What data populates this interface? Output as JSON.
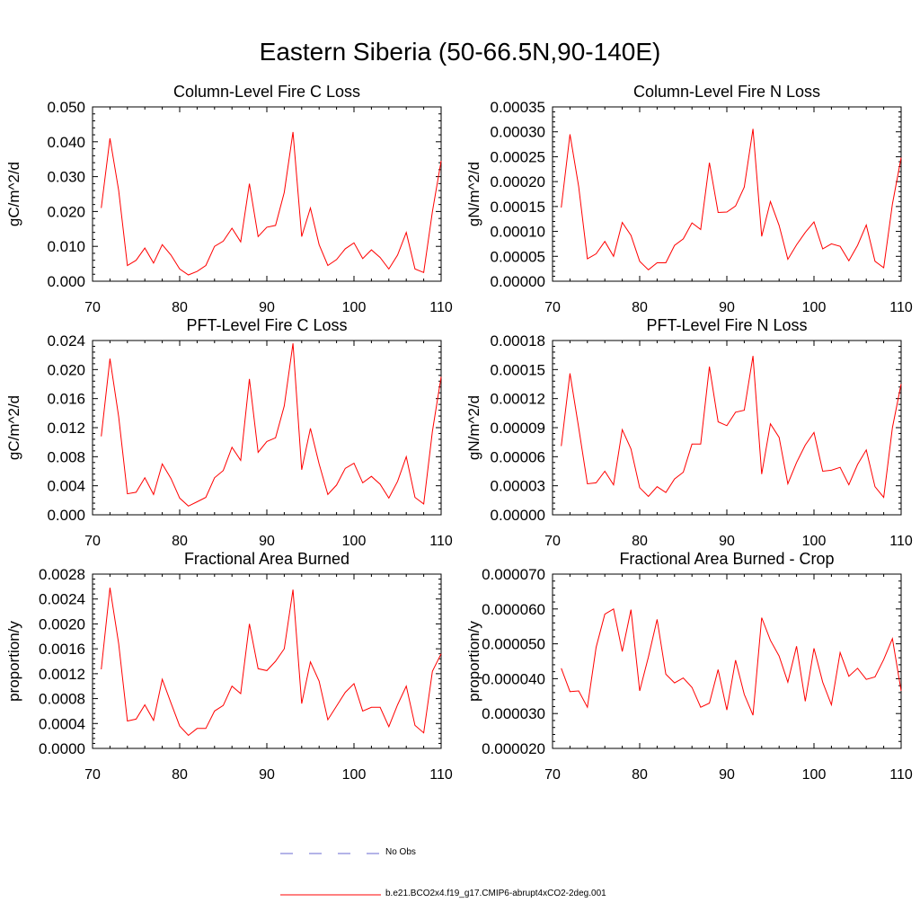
{
  "title": "Eastern Siberia (50-66.5N,90-140E)",
  "colors": {
    "model": "#ff0000",
    "obs": "#6a6ad0",
    "axis": "#000000"
  },
  "legend": {
    "obs_label": "No Obs",
    "model_label": "b.e21.BCO2x4.f19_g17.CMIP6-abrupt4xCO2-2deg.001"
  },
  "chart_data": [
    {
      "type": "line",
      "title": "Column-Level Fire C Loss",
      "ylabel": "gC/m^2/d",
      "xlim": [
        70,
        110
      ],
      "ylim": [
        0,
        0.05
      ],
      "xticks": [
        70,
        80,
        90,
        100,
        110
      ],
      "yticks": [
        "0.000",
        "0.010",
        "0.020",
        "0.030",
        "0.040",
        "0.050"
      ],
      "x": [
        71,
        72,
        73,
        74,
        75,
        76,
        77,
        78,
        79,
        80,
        81,
        82,
        83,
        84,
        85,
        86,
        87,
        88,
        89,
        90,
        91,
        92,
        93,
        94,
        95,
        96,
        97,
        98,
        99,
        100,
        101,
        102,
        103,
        104,
        105,
        106,
        107,
        108,
        109,
        110
      ],
      "series": [
        {
          "name": "b.e21.BCO2x4.f19_g17.CMIP6-abrupt4xCO2-2deg.001",
          "values": [
            0.021,
            0.041,
            0.026,
            0.0045,
            0.006,
            0.0095,
            0.0052,
            0.0105,
            0.0075,
            0.0035,
            0.0018,
            0.0028,
            0.0045,
            0.01,
            0.0115,
            0.0152,
            0.0113,
            0.028,
            0.0128,
            0.0155,
            0.016,
            0.0255,
            0.0428,
            0.0128,
            0.021,
            0.0105,
            0.0045,
            0.0062,
            0.0093,
            0.011,
            0.0065,
            0.009,
            0.0068,
            0.0035,
            0.0075,
            0.014,
            0.0035,
            0.0025,
            0.02,
            0.0345
          ]
        }
      ]
    },
    {
      "type": "line",
      "title": "Column-Level Fire N Loss",
      "ylabel": "gN/m^2/d",
      "xlim": [
        70,
        110
      ],
      "ylim": [
        0,
        0.00035
      ],
      "xticks": [
        70,
        80,
        90,
        100,
        110
      ],
      "yticks": [
        "0.00000",
        "0.00005",
        "0.00010",
        "0.00015",
        "0.00020",
        "0.00025",
        "0.00030",
        "0.00035"
      ],
      "x": [
        71,
        72,
        73,
        74,
        75,
        76,
        77,
        78,
        79,
        80,
        81,
        82,
        83,
        84,
        85,
        86,
        87,
        88,
        89,
        90,
        91,
        92,
        93,
        94,
        95,
        96,
        97,
        98,
        99,
        100,
        101,
        102,
        103,
        104,
        105,
        106,
        107,
        108,
        109,
        110
      ],
      "series": [
        {
          "name": "b.e21.BCO2x4.f19_g17.CMIP6-abrupt4xCO2-2deg.001",
          "values": [
            0.000148,
            0.000295,
            0.00019,
            4.5e-05,
            5.5e-05,
            8e-05,
            5e-05,
            0.000118,
            9.2e-05,
            4e-05,
            2.3e-05,
            3.7e-05,
            3.7e-05,
            7.2e-05,
            8.5e-05,
            0.000117,
            0.000104,
            0.000238,
            0.000138,
            0.000139,
            0.000151,
            0.000189,
            0.000306,
            9e-05,
            0.00016,
            0.000112,
            4.4e-05,
            7.3e-05,
            9.8e-05,
            0.000119,
            6.5e-05,
            7.5e-05,
            7e-05,
            4.1e-05,
            7.2e-05,
            0.000113,
            4e-05,
            2.7e-05,
            0.000155,
            0.000248
          ]
        }
      ]
    },
    {
      "type": "line",
      "title": "PFT-Level Fire C Loss",
      "ylabel": "gC/m^2/d",
      "xlim": [
        70,
        110
      ],
      "ylim": [
        0,
        0.024
      ],
      "xticks": [
        70,
        80,
        90,
        100,
        110
      ],
      "yticks": [
        "0.000",
        "0.004",
        "0.008",
        "0.012",
        "0.016",
        "0.020",
        "0.024"
      ],
      "x": [
        71,
        72,
        73,
        74,
        75,
        76,
        77,
        78,
        79,
        80,
        81,
        82,
        83,
        84,
        85,
        86,
        87,
        88,
        89,
        90,
        91,
        92,
        93,
        94,
        95,
        96,
        97,
        98,
        99,
        100,
        101,
        102,
        103,
        104,
        105,
        106,
        107,
        108,
        109,
        110
      ],
      "series": [
        {
          "name": "b.e21.BCO2x4.f19_g17.CMIP6-abrupt4xCO2-2deg.001",
          "values": [
            0.0108,
            0.0215,
            0.0135,
            0.0029,
            0.0031,
            0.0051,
            0.0028,
            0.007,
            0.005,
            0.0023,
            0.0012,
            0.0018,
            0.0024,
            0.0051,
            0.0061,
            0.0093,
            0.0075,
            0.0187,
            0.0086,
            0.0101,
            0.0106,
            0.015,
            0.0236,
            0.0062,
            0.0119,
            0.007,
            0.0028,
            0.0041,
            0.0064,
            0.0071,
            0.0044,
            0.0053,
            0.0042,
            0.0023,
            0.0046,
            0.008,
            0.0024,
            0.0015,
            0.0115,
            0.019
          ]
        }
      ]
    },
    {
      "type": "line",
      "title": "PFT-Level Fire N Loss",
      "ylabel": "gN/m^2/d",
      "xlim": [
        70,
        110
      ],
      "ylim": [
        0,
        0.00018
      ],
      "xticks": [
        70,
        80,
        90,
        100,
        110
      ],
      "yticks": [
        "0.00000",
        "0.00003",
        "0.00006",
        "0.00009",
        "0.00012",
        "0.00015",
        "0.00018"
      ],
      "x": [
        71,
        72,
        73,
        74,
        75,
        76,
        77,
        78,
        79,
        80,
        81,
        82,
        83,
        84,
        85,
        86,
        87,
        88,
        89,
        90,
        91,
        92,
        93,
        94,
        95,
        96,
        97,
        98,
        99,
        100,
        101,
        102,
        103,
        104,
        105,
        106,
        107,
        108,
        109,
        110
      ],
      "series": [
        {
          "name": "b.e21.BCO2x4.f19_g17.CMIP6-abrupt4xCO2-2deg.001",
          "values": [
            7.1e-05,
            0.000146,
            9e-05,
            3.2e-05,
            3.3e-05,
            4.5e-05,
            3.1e-05,
            8.8e-05,
            6.8e-05,
            2.8e-05,
            1.9e-05,
            2.9e-05,
            2.3e-05,
            3.7e-05,
            4.4e-05,
            7.3e-05,
            7.3e-05,
            0.000153,
            9.6e-05,
            9.2e-05,
            0.000106,
            0.000108,
            0.000164,
            4.2e-05,
            9.4e-05,
            8e-05,
            3.2e-05,
            5.4e-05,
            7.2e-05,
            8.5e-05,
            4.5e-05,
            4.6e-05,
            4.9e-05,
            3.1e-05,
            5.2e-05,
            6.7e-05,
            2.9e-05,
            1.8e-05,
            9e-05,
            0.000135
          ]
        }
      ]
    },
    {
      "type": "line",
      "title": "Fractional Area Burned",
      "ylabel": "proportion/y",
      "xlim": [
        70,
        110
      ],
      "ylim": [
        0,
        0.0028
      ],
      "xticks": [
        70,
        80,
        90,
        100,
        110
      ],
      "yticks": [
        "0.0000",
        "0.0004",
        "0.0008",
        "0.0012",
        "0.0016",
        "0.0020",
        "0.0024",
        "0.0028"
      ],
      "x": [
        71,
        72,
        73,
        74,
        75,
        76,
        77,
        78,
        79,
        80,
        81,
        82,
        83,
        84,
        85,
        86,
        87,
        88,
        89,
        90,
        91,
        92,
        93,
        94,
        95,
        96,
        97,
        98,
        99,
        100,
        101,
        102,
        103,
        104,
        105,
        106,
        107,
        108,
        109,
        110
      ],
      "series": [
        {
          "name": "b.e21.BCO2x4.f19_g17.CMIP6-abrupt4xCO2-2deg.001",
          "values": [
            0.00127,
            0.00258,
            0.00168,
            0.00044,
            0.00047,
            0.0007,
            0.00045,
            0.00111,
            0.00073,
            0.00036,
            0.00021,
            0.00032,
            0.00032,
            0.0006,
            0.00069,
            0.001,
            0.00088,
            0.002,
            0.00128,
            0.00125,
            0.0014,
            0.0016,
            0.00255,
            0.00072,
            0.00139,
            0.00108,
            0.00046,
            0.00068,
            0.0009,
            0.00104,
            0.0006,
            0.00066,
            0.00066,
            0.00035,
            0.0007,
            0.001,
            0.00037,
            0.00025,
            0.00124,
            0.00152
          ]
        }
      ]
    },
    {
      "type": "line",
      "title": "Fractional Area Burned - Crop",
      "ylabel": "proportion/y",
      "xlim": [
        70,
        110
      ],
      "ylim": [
        2e-05,
        7e-05
      ],
      "xticks": [
        70,
        80,
        90,
        100,
        110
      ],
      "yticks": [
        "0.000020",
        "0.000030",
        "0.000040",
        "0.000050",
        "0.000060",
        "0.000070"
      ],
      "x": [
        71,
        72,
        73,
        74,
        75,
        76,
        77,
        78,
        79,
        80,
        81,
        82,
        83,
        84,
        85,
        86,
        87,
        88,
        89,
        90,
        91,
        92,
        93,
        94,
        95,
        96,
        97,
        98,
        99,
        100,
        101,
        102,
        103,
        104,
        105,
        106,
        107,
        108,
        109,
        110
      ],
      "series": [
        {
          "name": "b.e21.BCO2x4.f19_g17.CMIP6-abrupt4xCO2-2deg.001",
          "values": [
            4.3e-05,
            3.63e-05,
            3.65e-05,
            3.18e-05,
            4.9e-05,
            5.85e-05,
            6e-05,
            4.78e-05,
            5.98e-05,
            3.65e-05,
            4.62e-05,
            5.7e-05,
            4.13e-05,
            3.88e-05,
            4.02e-05,
            3.75e-05,
            3.18e-05,
            3.3e-05,
            4.26e-05,
            3.1e-05,
            4.53e-05,
            3.55e-05,
            2.95e-05,
            5.75e-05,
            5.1e-05,
            4.65e-05,
            3.9e-05,
            4.93e-05,
            3.35e-05,
            4.87e-05,
            3.9e-05,
            3.25e-05,
            4.75e-05,
            4.07e-05,
            4.3e-05,
            3.98e-05,
            4.05e-05,
            4.55e-05,
            5.15e-05,
            3.65e-05
          ]
        }
      ]
    }
  ]
}
